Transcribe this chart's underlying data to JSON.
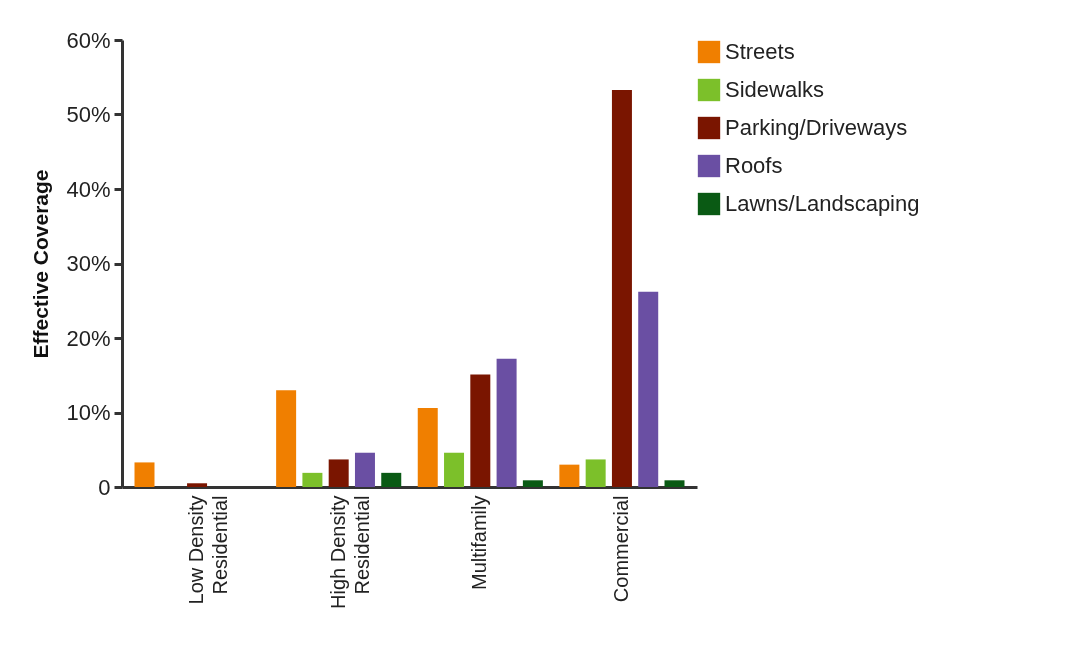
{
  "chart_data": {
    "type": "bar",
    "ylabel": "Effective Coverage",
    "categories": [
      "Low Density Residential",
      "High Density Residential",
      "Multifamily",
      "Commercial"
    ],
    "series": [
      {
        "name": "Streets",
        "color": "#f07f00",
        "values": [
          3.3,
          13.0,
          10.6,
          3.0
        ]
      },
      {
        "name": "Sidewalks",
        "color": "#7cc02a",
        "values": [
          0,
          1.9,
          4.6,
          3.7
        ]
      },
      {
        "name": "Parking/Driveways",
        "color": "#7a1500",
        "values": [
          0.5,
          3.7,
          15.1,
          53.3
        ]
      },
      {
        "name": "Roofs",
        "color": "#6a4fa3",
        "values": [
          0,
          4.6,
          17.2,
          26.2
        ]
      },
      {
        "name": "Lawns/Landscaping",
        "color": "#0a5a14",
        "values": [
          0,
          1.9,
          0.9,
          0.9
        ]
      }
    ],
    "ylim": [
      0,
      60
    ],
    "yticks": [
      {
        "value": 0,
        "label": "0"
      },
      {
        "value": 10,
        "label": "10%"
      },
      {
        "value": 20,
        "label": "20%"
      },
      {
        "value": 30,
        "label": "30%"
      },
      {
        "value": 40,
        "label": "40%"
      },
      {
        "value": 50,
        "label": "50%"
      },
      {
        "value": 60,
        "label": "60%"
      }
    ],
    "grid": false,
    "legend": "right"
  }
}
